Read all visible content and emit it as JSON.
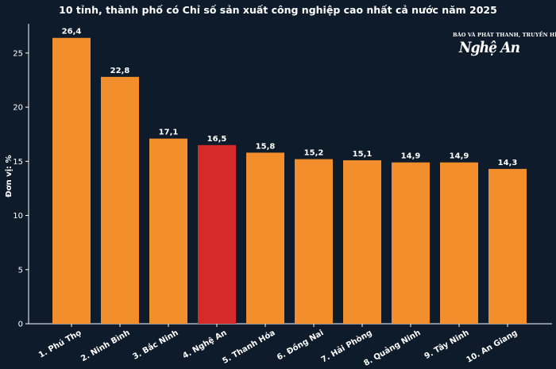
{
  "chart_data": {
    "type": "bar",
    "title": "10 tỉnh, thành phố có Chỉ số sản xuất công nghiệp cao nhất cả nước năm 2025",
    "ylabel": "Đơn vị: %",
    "xlabel": "",
    "categories": [
      "1. Phú Thọ",
      "2. Ninh Bình",
      "3. Bắc Ninh",
      "4. Nghệ An",
      "5. Thanh Hóa",
      "6. Đồng Nai",
      "7. Hải Phòng",
      "8. Quảng Ninh",
      "9. Tây Ninh",
      "10. An Giang"
    ],
    "values": [
      26.4,
      22.8,
      17.1,
      16.5,
      15.8,
      15.2,
      15.1,
      14.9,
      14.9,
      14.3
    ],
    "value_labels": [
      "26,4",
      "22,8",
      "17,1",
      "16,5",
      "15,8",
      "15,2",
      "15,1",
      "14,9",
      "14,9",
      "14,3"
    ],
    "ylim": [
      0,
      27.7
    ],
    "yticks": [
      0,
      5,
      10,
      15,
      20,
      25
    ],
    "highlight_index": 3,
    "colors": {
      "bar": "#f28f2c",
      "highlight": "#d62a2a",
      "background": "#0d1b2a",
      "text": "#ffffff"
    },
    "grid": false,
    "legend": "none"
  },
  "logo": {
    "small_text": "BÁO VÀ PHÁT THANH, TRUYỀN HÌNH",
    "main_text": "Nghệ An"
  }
}
